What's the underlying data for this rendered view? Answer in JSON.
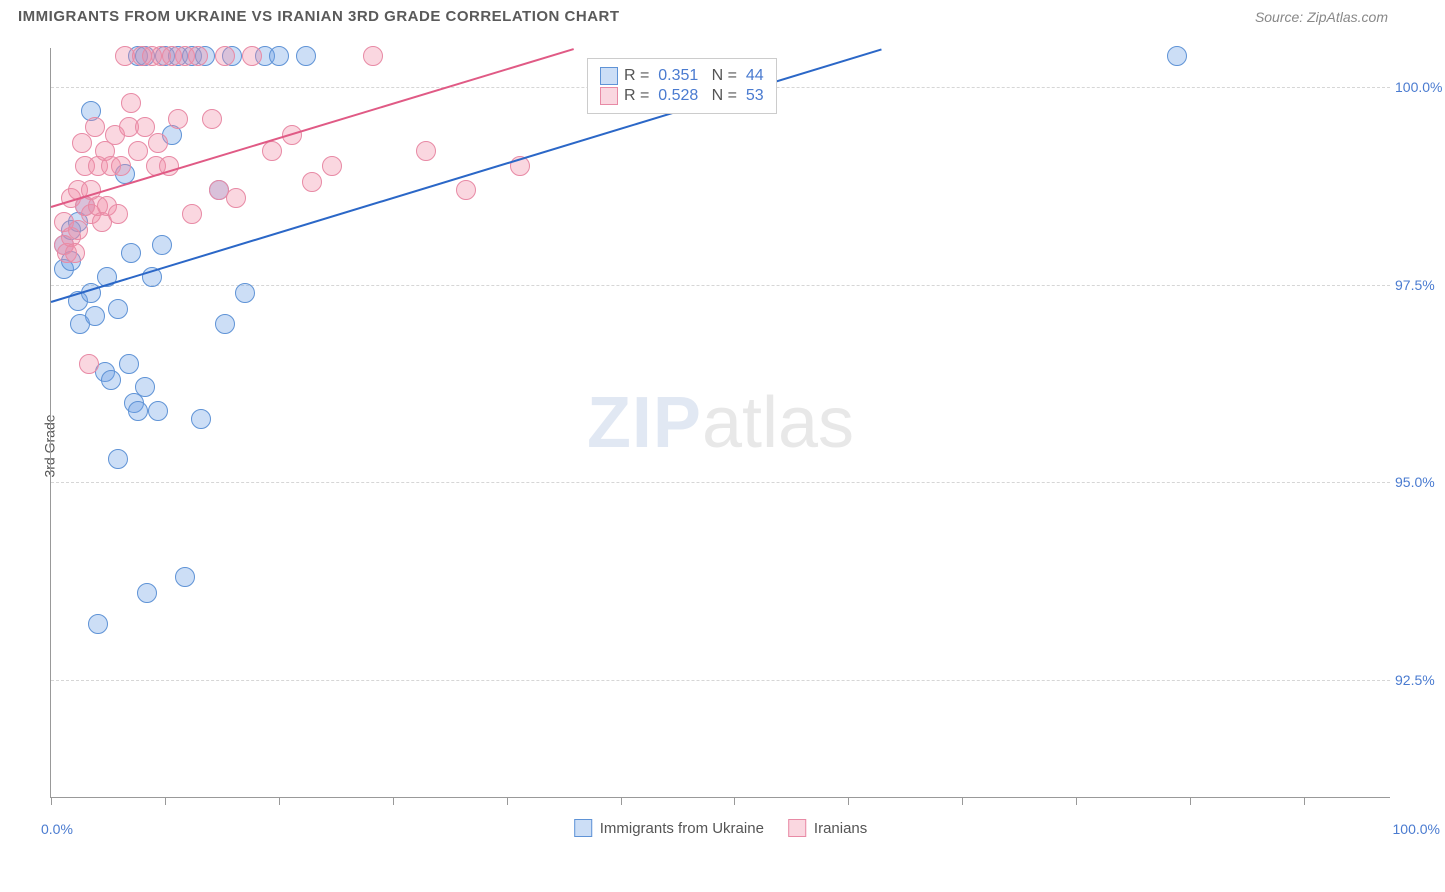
{
  "title": "IMMIGRANTS FROM UKRAINE VS IRANIAN 3RD GRADE CORRELATION CHART",
  "source": "Source: ZipAtlas.com",
  "ylabel": "3rd Grade",
  "watermark": {
    "zip": "ZIP",
    "atlas": "atlas"
  },
  "chart": {
    "type": "scatter",
    "xlim": [
      0,
      100
    ],
    "ylim": [
      91.0,
      100.5
    ],
    "xticks_percent": [
      0,
      8.5,
      17,
      25.5,
      34,
      42.5,
      51,
      59.5,
      68,
      76.5,
      85,
      93.5
    ],
    "yticks": [
      {
        "val": 100.0,
        "label": "100.0%"
      },
      {
        "val": 97.5,
        "label": "97.5%"
      },
      {
        "val": 95.0,
        "label": "95.0%"
      },
      {
        "val": 92.5,
        "label": "92.5%"
      }
    ],
    "xlim_labels": {
      "min": "0.0%",
      "max": "100.0%"
    },
    "background_color": "#ffffff",
    "grid_color": "#d6d6d6",
    "marker_radius": 10,
    "series": [
      {
        "name": "Immigrants from Ukraine",
        "color_fill": "rgba(110,160,230,0.35)",
        "color_stroke": "#5f93d6",
        "trend": {
          "x1": 0,
          "y1": 97.3,
          "x2": 62,
          "y2": 100.5,
          "color": "#2b67c7"
        },
        "stats": {
          "R": "0.351",
          "N": "44"
        },
        "points": [
          [
            1,
            98.0
          ],
          [
            1,
            97.7
          ],
          [
            1.5,
            98.2
          ],
          [
            1.5,
            97.8
          ],
          [
            2,
            97.3
          ],
          [
            2,
            98.3
          ],
          [
            2.2,
            97.0
          ],
          [
            2.5,
            98.5
          ],
          [
            3,
            97.4
          ],
          [
            3,
            99.7
          ],
          [
            3.3,
            97.1
          ],
          [
            3.5,
            93.2
          ],
          [
            4,
            96.4
          ],
          [
            4.2,
            97.6
          ],
          [
            4.5,
            96.3
          ],
          [
            5,
            95.3
          ],
          [
            5,
            97.2
          ],
          [
            5.5,
            98.9
          ],
          [
            5.8,
            96.5
          ],
          [
            6,
            97.9
          ],
          [
            6.2,
            96.0
          ],
          [
            6.5,
            95.9
          ],
          [
            6.5,
            100.4
          ],
          [
            7,
            96.2
          ],
          [
            7,
            100.4
          ],
          [
            7.2,
            93.6
          ],
          [
            7.5,
            97.6
          ],
          [
            8,
            95.9
          ],
          [
            8.3,
            98.0
          ],
          [
            8.5,
            100.4
          ],
          [
            9,
            99.4
          ],
          [
            9.5,
            100.4
          ],
          [
            10,
            93.8
          ],
          [
            10.5,
            100.4
          ],
          [
            11.2,
            95.8
          ],
          [
            11.5,
            100.4
          ],
          [
            12.5,
            98.7
          ],
          [
            13,
            97.0
          ],
          [
            13.5,
            100.4
          ],
          [
            14.5,
            97.4
          ],
          [
            16,
            100.4
          ],
          [
            17,
            100.4
          ],
          [
            19,
            100.4
          ],
          [
            84,
            100.4
          ]
        ]
      },
      {
        "name": "Iranians",
        "color_fill": "rgba(240,140,165,0.35)",
        "color_stroke": "#e88aa5",
        "trend": {
          "x1": 0,
          "y1": 98.5,
          "x2": 39,
          "y2": 100.5,
          "color": "#e05a85"
        },
        "stats": {
          "R": "0.528",
          "N": "53"
        },
        "points": [
          [
            1,
            98.0
          ],
          [
            1,
            98.3
          ],
          [
            1.2,
            97.9
          ],
          [
            1.5,
            98.1
          ],
          [
            1.5,
            98.6
          ],
          [
            1.8,
            97.9
          ],
          [
            2,
            98.2
          ],
          [
            2,
            98.7
          ],
          [
            2.3,
            99.3
          ],
          [
            2.5,
            98.5
          ],
          [
            2.5,
            99.0
          ],
          [
            2.8,
            96.5
          ],
          [
            3,
            98.4
          ],
          [
            3,
            98.7
          ],
          [
            3.3,
            99.5
          ],
          [
            3.5,
            99.0
          ],
          [
            3.5,
            98.5
          ],
          [
            3.8,
            98.3
          ],
          [
            4,
            99.2
          ],
          [
            4.2,
            98.5
          ],
          [
            4.5,
            99.0
          ],
          [
            4.8,
            99.4
          ],
          [
            5,
            98.4
          ],
          [
            5.2,
            99.0
          ],
          [
            5.5,
            100.4
          ],
          [
            5.8,
            99.5
          ],
          [
            6,
            99.8
          ],
          [
            6.5,
            99.2
          ],
          [
            6.8,
            100.4
          ],
          [
            7,
            99.5
          ],
          [
            7.5,
            100.4
          ],
          [
            7.8,
            99.0
          ],
          [
            8,
            99.3
          ],
          [
            8.2,
            100.4
          ],
          [
            8.8,
            99.0
          ],
          [
            9,
            100.4
          ],
          [
            9.5,
            99.6
          ],
          [
            10,
            100.4
          ],
          [
            10.5,
            98.4
          ],
          [
            11,
            100.4
          ],
          [
            12,
            99.6
          ],
          [
            12.5,
            98.7
          ],
          [
            13,
            100.4
          ],
          [
            13.8,
            98.6
          ],
          [
            15,
            100.4
          ],
          [
            16.5,
            99.2
          ],
          [
            18,
            99.4
          ],
          [
            19.5,
            98.8
          ],
          [
            21,
            99.0
          ],
          [
            24,
            100.4
          ],
          [
            28,
            99.2
          ],
          [
            31,
            98.7
          ],
          [
            35,
            99.0
          ]
        ]
      }
    ],
    "legend_box": {
      "left_percent": 40
    },
    "bottom_legend": [
      {
        "label": "Immigrants from Ukraine",
        "fill": "rgba(110,160,230,0.35)",
        "stroke": "#5f93d6"
      },
      {
        "label": "Iranians",
        "fill": "rgba(240,140,165,0.35)",
        "stroke": "#e88aa5"
      }
    ]
  }
}
